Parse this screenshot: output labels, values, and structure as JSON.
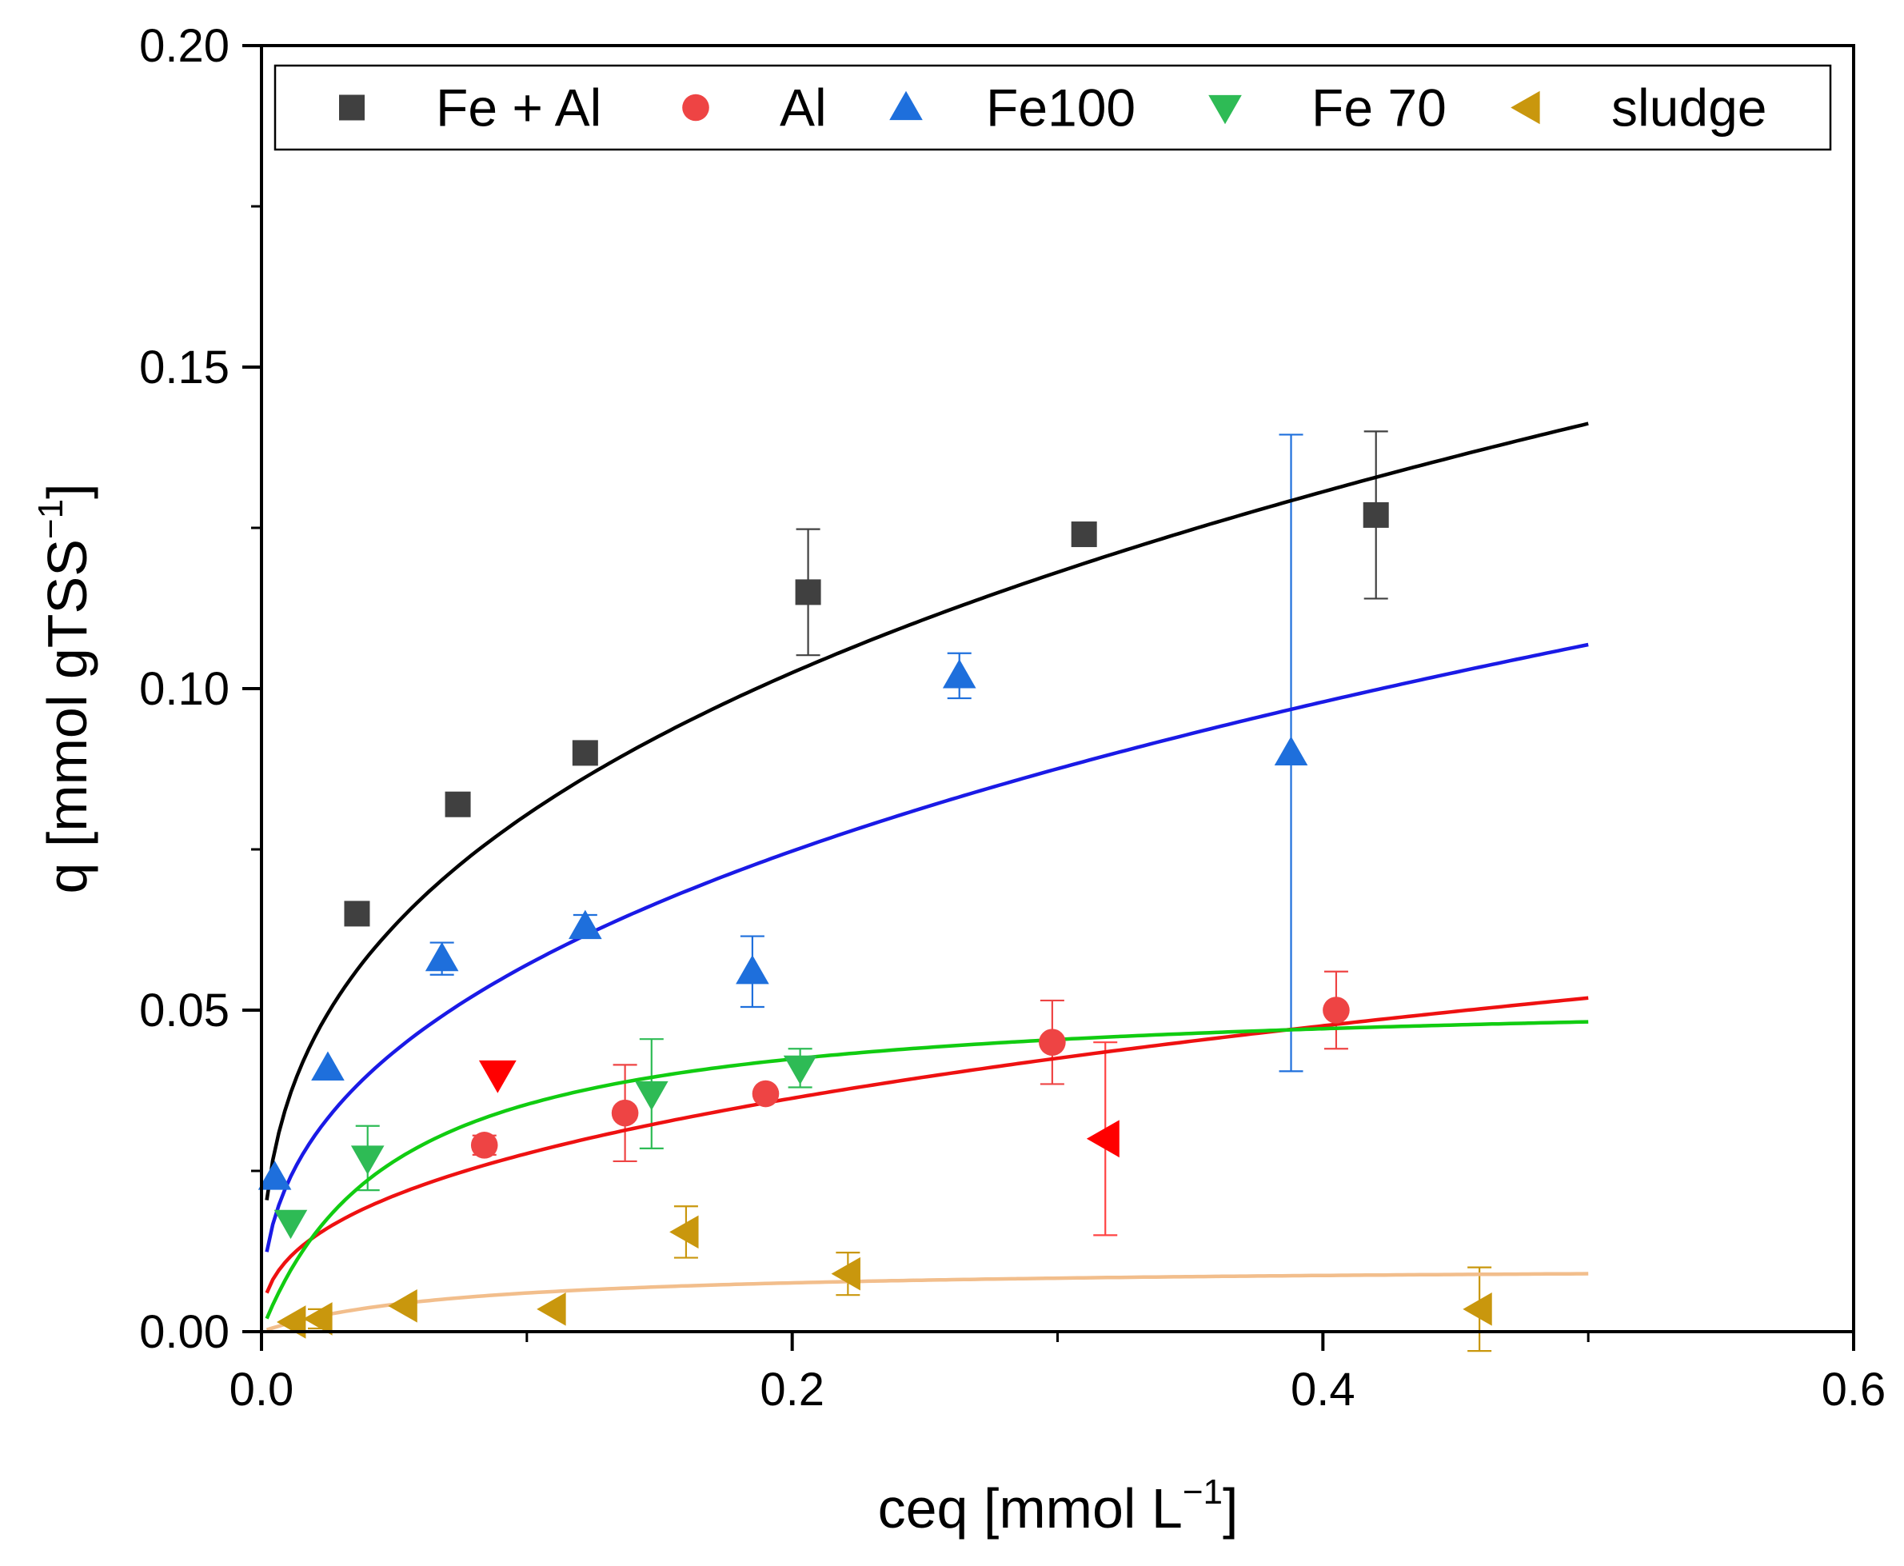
{
  "chart_data": {
    "type": "scatter",
    "xlabel": "ceq [mmol L",
    "xlabel_sup": "−1",
    "xlabel_end": "]",
    "ylabel": "q [mmol gTSS",
    "ylabel_sup": "−1",
    "ylabel_end": "]",
    "xlim": [
      0.0,
      0.6
    ],
    "ylim": [
      0.0,
      0.2
    ],
    "x_ticks": [
      {
        "value": 0.0,
        "label": "0.0"
      },
      {
        "value": 0.2,
        "label": "0.2"
      },
      {
        "value": 0.4,
        "label": "0.4"
      },
      {
        "value": 0.6,
        "label": "0.6"
      }
    ],
    "y_ticks": [
      {
        "value": 0.0,
        "label": "0.00"
      },
      {
        "value": 0.05,
        "label": "0.05"
      },
      {
        "value": 0.1,
        "label": "0.10"
      },
      {
        "value": 0.15,
        "label": "0.15"
      },
      {
        "value": 0.2,
        "label": "0.20"
      }
    ],
    "grid": false,
    "legend_position": "top",
    "series": [
      {
        "name": "Fe + Al",
        "marker": "square",
        "color": "#404040",
        "fit_color": "#000000",
        "fit": {
          "model": "freundlich",
          "K": 0.18,
          "n": 0.35
        },
        "points": [
          {
            "x": 0.036,
            "y": 0.065
          },
          {
            "x": 0.074,
            "y": 0.082
          },
          {
            "x": 0.122,
            "y": 0.09,
            "err": 0.0015
          },
          {
            "x": 0.206,
            "y": 0.115,
            "err": 0.0098
          },
          {
            "x": 0.31,
            "y": 0.124
          },
          {
            "x": 0.42,
            "y": 0.127,
            "err": 0.013
          }
        ]
      },
      {
        "name": "Al",
        "marker": "circle",
        "color": "#ee4444",
        "fit_color": "#ee1111",
        "fit": {
          "model": "freundlich",
          "K": 0.068,
          "n": 0.39
        },
        "points": [
          {
            "x": 0.084,
            "y": 0.029,
            "err": 0.0015
          },
          {
            "x": 0.137,
            "y": 0.034,
            "err": 0.0075
          },
          {
            "x": 0.19,
            "y": 0.037
          },
          {
            "x": 0.298,
            "y": 0.045,
            "err": 0.0065
          },
          {
            "x": 0.405,
            "y": 0.05,
            "err": 0.006
          }
        ]
      },
      {
        "name": "Fe100",
        "marker": "triangle-up",
        "color": "#1e6fdc",
        "fit_color": "#1a1ae6",
        "fit": {
          "model": "freundlich",
          "K": 0.14,
          "n": 0.39
        },
        "points": [
          {
            "x": 0.005,
            "y": 0.024
          },
          {
            "x": 0.025,
            "y": 0.041
          },
          {
            "x": 0.068,
            "y": 0.058,
            "err": 0.0025
          },
          {
            "x": 0.122,
            "y": 0.063,
            "err": 0.0018
          },
          {
            "x": 0.185,
            "y": 0.056,
            "err": 0.0055
          },
          {
            "x": 0.263,
            "y": 0.102,
            "err": 0.0035
          },
          {
            "x": 0.388,
            "y": 0.09,
            "err": 0.0495
          }
        ]
      },
      {
        "name": "Fe 70",
        "marker": "triangle-down",
        "color": "#2ebb55",
        "fit_color": "#11cc11",
        "fit": {
          "model": "langmuir",
          "qmax": 0.053,
          "KL": 20
        },
        "points": [
          {
            "x": 0.011,
            "y": 0.017
          },
          {
            "x": 0.04,
            "y": 0.027,
            "err": 0.005
          },
          {
            "x": 0.147,
            "y": 0.037,
            "err": 0.0085
          },
          {
            "x": 0.203,
            "y": 0.041,
            "err": 0.003
          }
        ]
      },
      {
        "name": "sludge",
        "marker": "triangle-left",
        "color": "#c9970d",
        "fit_color": "#f2be8c",
        "fit": {
          "model": "langmuir",
          "qmax": 0.0103,
          "KL": 14
        },
        "points": [
          {
            "x": 0.012,
            "y": 0.0015
          },
          {
            "x": 0.022,
            "y": 0.002,
            "err": 0.0015
          },
          {
            "x": 0.054,
            "y": 0.004
          },
          {
            "x": 0.11,
            "y": 0.0035
          },
          {
            "x": 0.16,
            "y": 0.0155,
            "err": 0.004
          },
          {
            "x": 0.221,
            "y": 0.009,
            "err": 0.0033
          },
          {
            "x": 0.459,
            "y": 0.0035,
            "err": 0.0065
          }
        ]
      }
    ],
    "highlighted_points": [
      {
        "marker": "triangle-down",
        "color": "#ff0000",
        "x": 0.089,
        "y": 0.04
      },
      {
        "marker": "triangle-left",
        "color": "#ff0000",
        "x": 0.318,
        "y": 0.03,
        "err": 0.015
      }
    ]
  }
}
